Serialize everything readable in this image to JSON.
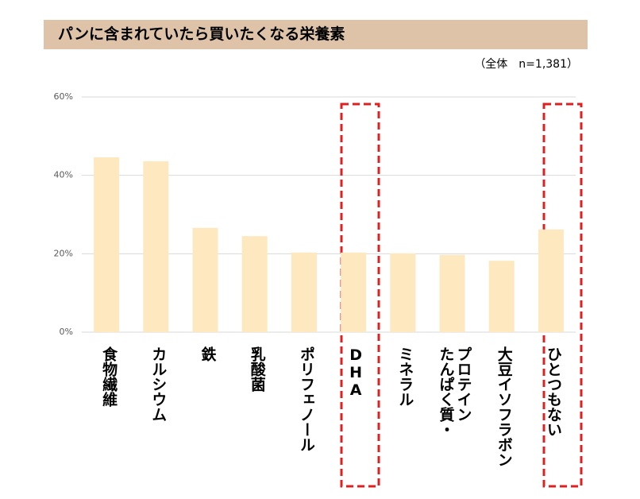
{
  "chart_data": {
    "type": "bar",
    "title": "パンに含まれていたら買いたくなる栄養素",
    "subtitle": "（全体　n=1,381）",
    "categories": [
      "食物繊維",
      "カルシウム",
      "鉄",
      "乳酸菌",
      "ポリフェノール",
      "DHA",
      "ミネラル",
      "たんぱく質・\nプロテイン",
      "大豆イソフラボン",
      "ひとつもない"
    ],
    "values": [
      44.6,
      43.6,
      26.6,
      24.5,
      20.3,
      20.3,
      20.1,
      19.7,
      18.2,
      26.2
    ],
    "color": "#fde8bf",
    "ylim": [
      0,
      60
    ],
    "yticks": [
      {
        "value": 0,
        "label": "0%"
      },
      {
        "value": 20,
        "label": "20%"
      },
      {
        "value": 40,
        "label": "40%"
      },
      {
        "value": 60,
        "label": "60%"
      }
    ],
    "grid": true
  }
}
